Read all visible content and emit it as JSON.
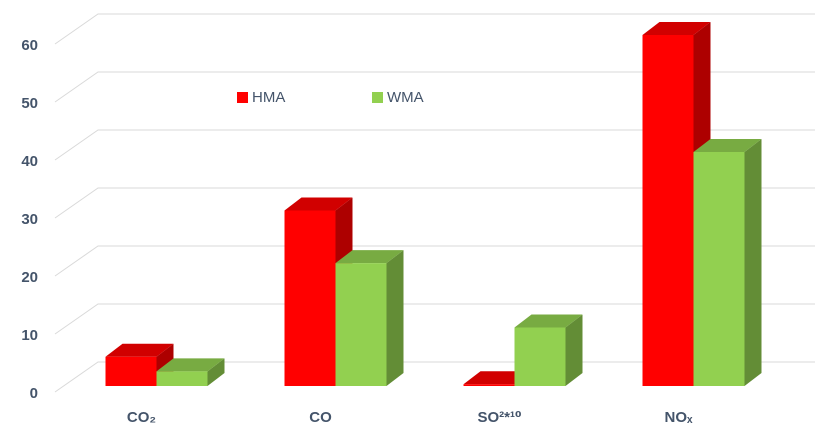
{
  "chart_data": {
    "type": "bar3d",
    "categories": [
      "CO₂",
      "CO",
      "SO²*¹⁰",
      "NOₓ"
    ],
    "series": [
      {
        "name": "HMA",
        "color": "#ff0000",
        "values": [
          5,
          30,
          0.3,
          60
        ]
      },
      {
        "name": "WMA",
        "color": "#92d050",
        "values": [
          2.5,
          21,
          10,
          40
        ]
      }
    ],
    "ylim": [
      0,
      60
    ],
    "yticks": [
      0,
      10,
      20,
      30,
      40,
      50,
      60
    ],
    "grid": true
  }
}
